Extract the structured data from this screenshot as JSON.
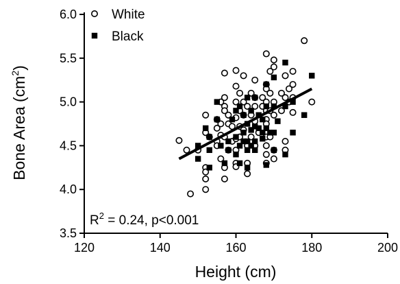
{
  "chart_data": {
    "type": "scatter",
    "xlabel": "Height (cm)",
    "ylabel_main": "Bone Area (cm",
    "ylabel_sup": "2",
    "ylabel_close": ")",
    "xlim": [
      120,
      200
    ],
    "ylim": [
      3.5,
      6.0
    ],
    "xticks": [
      120,
      140,
      160,
      180,
      200
    ],
    "xtick_labels": [
      "120",
      "140",
      "160",
      "180",
      "200"
    ],
    "yticks": [
      3.5,
      4.0,
      4.5,
      5.0,
      5.5,
      6.0
    ],
    "ytick_labels": [
      "3.5",
      "4.0",
      "4.5",
      "5.0",
      "5.5",
      "6.0"
    ],
    "grid": false,
    "legend_position": "top-left",
    "annotation": {
      "r_label": "R",
      "r_sup": "2",
      "rest": " = 0.24, p<0.001"
    },
    "regression_line": {
      "x": [
        145,
        180
      ],
      "y": [
        4.35,
        5.15
      ]
    },
    "series": [
      {
        "name": "White",
        "marker": "open-circle",
        "points": [
          [
            145,
            4.56
          ],
          [
            147,
            4.45
          ],
          [
            148,
            3.95
          ],
          [
            150,
            4.45
          ],
          [
            152,
            4.85
          ],
          [
            152,
            4.65
          ],
          [
            152,
            4.25
          ],
          [
            152,
            4.2
          ],
          [
            152,
            4.12
          ],
          [
            152,
            4.0
          ],
          [
            153,
            4.6
          ],
          [
            155,
            4.8
          ],
          [
            155,
            4.7
          ],
          [
            155,
            4.55
          ],
          [
            155,
            4.5
          ],
          [
            156,
            5.0
          ],
          [
            156,
            4.75
          ],
          [
            156,
            4.62
          ],
          [
            156,
            4.35
          ],
          [
            157,
            5.33
          ],
          [
            157,
            5.05
          ],
          [
            157,
            4.95
          ],
          [
            157,
            4.9
          ],
          [
            157,
            4.6
          ],
          [
            157,
            4.25
          ],
          [
            157,
            4.12
          ],
          [
            158,
            4.85
          ],
          [
            158,
            4.75
          ],
          [
            158,
            4.45
          ],
          [
            159,
            4.72
          ],
          [
            159,
            4.55
          ],
          [
            160,
            5.36
          ],
          [
            160,
            5.18
          ],
          [
            160,
            5.0
          ],
          [
            160,
            4.82
          ],
          [
            160,
            4.58
          ],
          [
            160,
            4.45
          ],
          [
            160,
            4.3
          ],
          [
            160,
            4.26
          ],
          [
            161,
            5.1
          ],
          [
            161,
            4.9
          ],
          [
            161,
            4.72
          ],
          [
            161,
            4.6
          ],
          [
            162,
            5.3
          ],
          [
            162,
            5.0
          ],
          [
            162,
            4.85
          ],
          [
            162,
            4.68
          ],
          [
            163,
            4.95
          ],
          [
            163,
            4.5
          ],
          [
            163,
            4.3
          ],
          [
            163,
            4.18
          ],
          [
            164,
            5.1
          ],
          [
            164,
            4.85
          ],
          [
            164,
            4.6
          ],
          [
            165,
            5.25
          ],
          [
            165,
            5.05
          ],
          [
            165,
            4.95
          ],
          [
            165,
            4.78
          ],
          [
            165,
            4.5
          ],
          [
            166,
            4.65
          ],
          [
            167,
            5.05
          ],
          [
            167,
            4.95
          ],
          [
            168,
            5.55
          ],
          [
            168,
            5.2
          ],
          [
            168,
            5.15
          ],
          [
            168,
            5.0
          ],
          [
            168,
            4.9
          ],
          [
            168,
            4.8
          ],
          [
            168,
            4.75
          ],
          [
            168,
            4.6
          ],
          [
            168,
            4.5
          ],
          [
            168,
            4.4
          ],
          [
            168,
            4.3
          ],
          [
            169,
            5.35
          ],
          [
            169,
            5.1
          ],
          [
            169,
            4.9
          ],
          [
            169,
            4.6
          ],
          [
            170,
            5.48
          ],
          [
            170,
            5.4
          ],
          [
            170,
            5.0
          ],
          [
            170,
            4.85
          ],
          [
            170,
            4.45
          ],
          [
            170,
            4.35
          ],
          [
            172,
            5.1
          ],
          [
            172,
            4.9
          ],
          [
            173,
            5.3
          ],
          [
            173,
            5.05
          ],
          [
            173,
            4.55
          ],
          [
            173,
            4.45
          ],
          [
            174,
            5.15
          ],
          [
            174,
            5.0
          ],
          [
            175,
            5.35
          ],
          [
            175,
            5.2
          ],
          [
            175,
            5.05
          ],
          [
            175,
            4.88
          ],
          [
            178,
            5.7
          ],
          [
            180,
            5.0
          ]
        ]
      },
      {
        "name": "Black",
        "marker": "filled-square",
        "points": [
          [
            150,
            4.35
          ],
          [
            150,
            4.5
          ],
          [
            152,
            4.7
          ],
          [
            153,
            4.6
          ],
          [
            153,
            4.45
          ],
          [
            153,
            4.25
          ],
          [
            155,
            5.0
          ],
          [
            155,
            4.8
          ],
          [
            156,
            4.5
          ],
          [
            157,
            4.3
          ],
          [
            158,
            4.55
          ],
          [
            158,
            4.45
          ],
          [
            159,
            4.8
          ],
          [
            160,
            4.9
          ],
          [
            160,
            4.6
          ],
          [
            160,
            4.4
          ],
          [
            161,
            4.95
          ],
          [
            161,
            4.5
          ],
          [
            161,
            4.3
          ],
          [
            162,
            4.85
          ],
          [
            162,
            4.65
          ],
          [
            162,
            4.55
          ],
          [
            163,
            5.05
          ],
          [
            163,
            4.75
          ],
          [
            163,
            4.55
          ],
          [
            163,
            4.45
          ],
          [
            163,
            4.25
          ],
          [
            164,
            4.9
          ],
          [
            164,
            4.68
          ],
          [
            164,
            4.5
          ],
          [
            165,
            5.05
          ],
          [
            165,
            4.72
          ],
          [
            165,
            4.55
          ],
          [
            165,
            4.45
          ],
          [
            166,
            4.85
          ],
          [
            166,
            4.7
          ],
          [
            167,
            4.8
          ],
          [
            167,
            4.65
          ],
          [
            167,
            4.58
          ],
          [
            168,
            5.2
          ],
          [
            168,
            4.95
          ],
          [
            168,
            4.7
          ],
          [
            168,
            4.28
          ],
          [
            169,
            4.65
          ],
          [
            170,
            5.28
          ],
          [
            170,
            4.95
          ],
          [
            170,
            4.65
          ],
          [
            170,
            4.45
          ],
          [
            171,
            4.78
          ],
          [
            173,
            5.45
          ],
          [
            173,
            4.95
          ],
          [
            173,
            4.4
          ],
          [
            175,
            5.0
          ],
          [
            175,
            4.65
          ],
          [
            178,
            4.85
          ],
          [
            180,
            5.3
          ]
        ]
      }
    ]
  }
}
